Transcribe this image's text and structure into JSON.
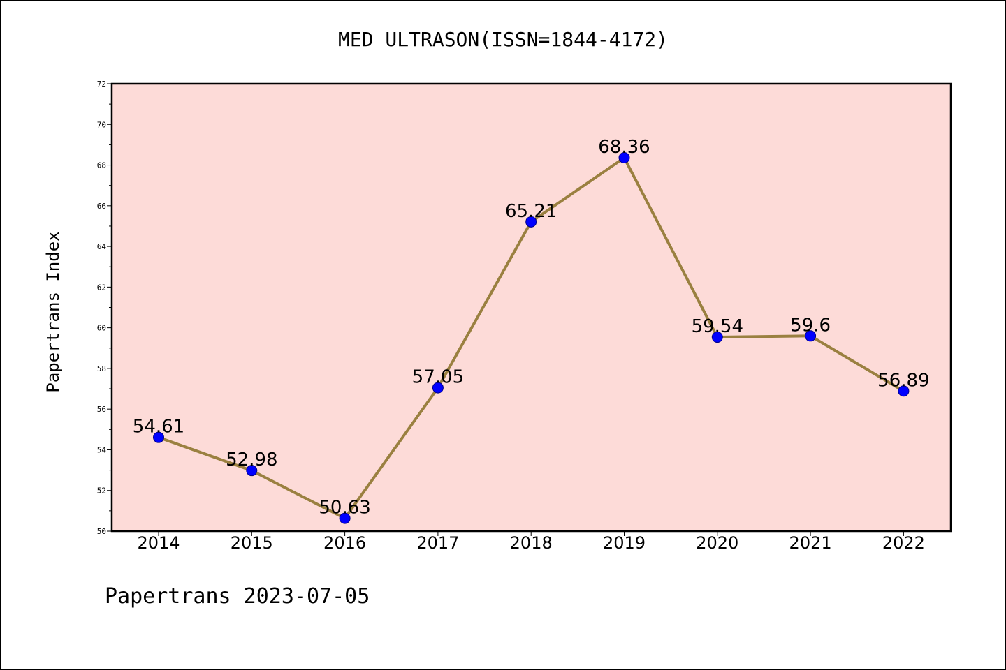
{
  "chart_data": {
    "type": "line",
    "title": "MED ULTRASON(ISSN=1844-4172)",
    "ylabel": "Papertrans Index",
    "xlabel": "",
    "categories": [
      "2014",
      "2015",
      "2016",
      "2017",
      "2018",
      "2019",
      "2020",
      "2021",
      "2022"
    ],
    "values": [
      54.61,
      52.98,
      50.63,
      57.05,
      65.21,
      68.36,
      59.54,
      59.6,
      56.89
    ],
    "data_labels": [
      "54.61",
      "52.98",
      "50.63",
      "57.05",
      "65.21",
      "68.36",
      "59.54",
      "59.6",
      "56.89"
    ],
    "ylim": [
      50,
      72
    ],
    "yticks": [
      50,
      52,
      54,
      56,
      58,
      60,
      62,
      64,
      66,
      68,
      70,
      72
    ],
    "grid": false,
    "legend": "none",
    "colors": {
      "plot_background": "#fddbd8",
      "line": "#9a8040",
      "marker": "#0000ff"
    }
  },
  "footer": "Papertrans 2023-07-05"
}
